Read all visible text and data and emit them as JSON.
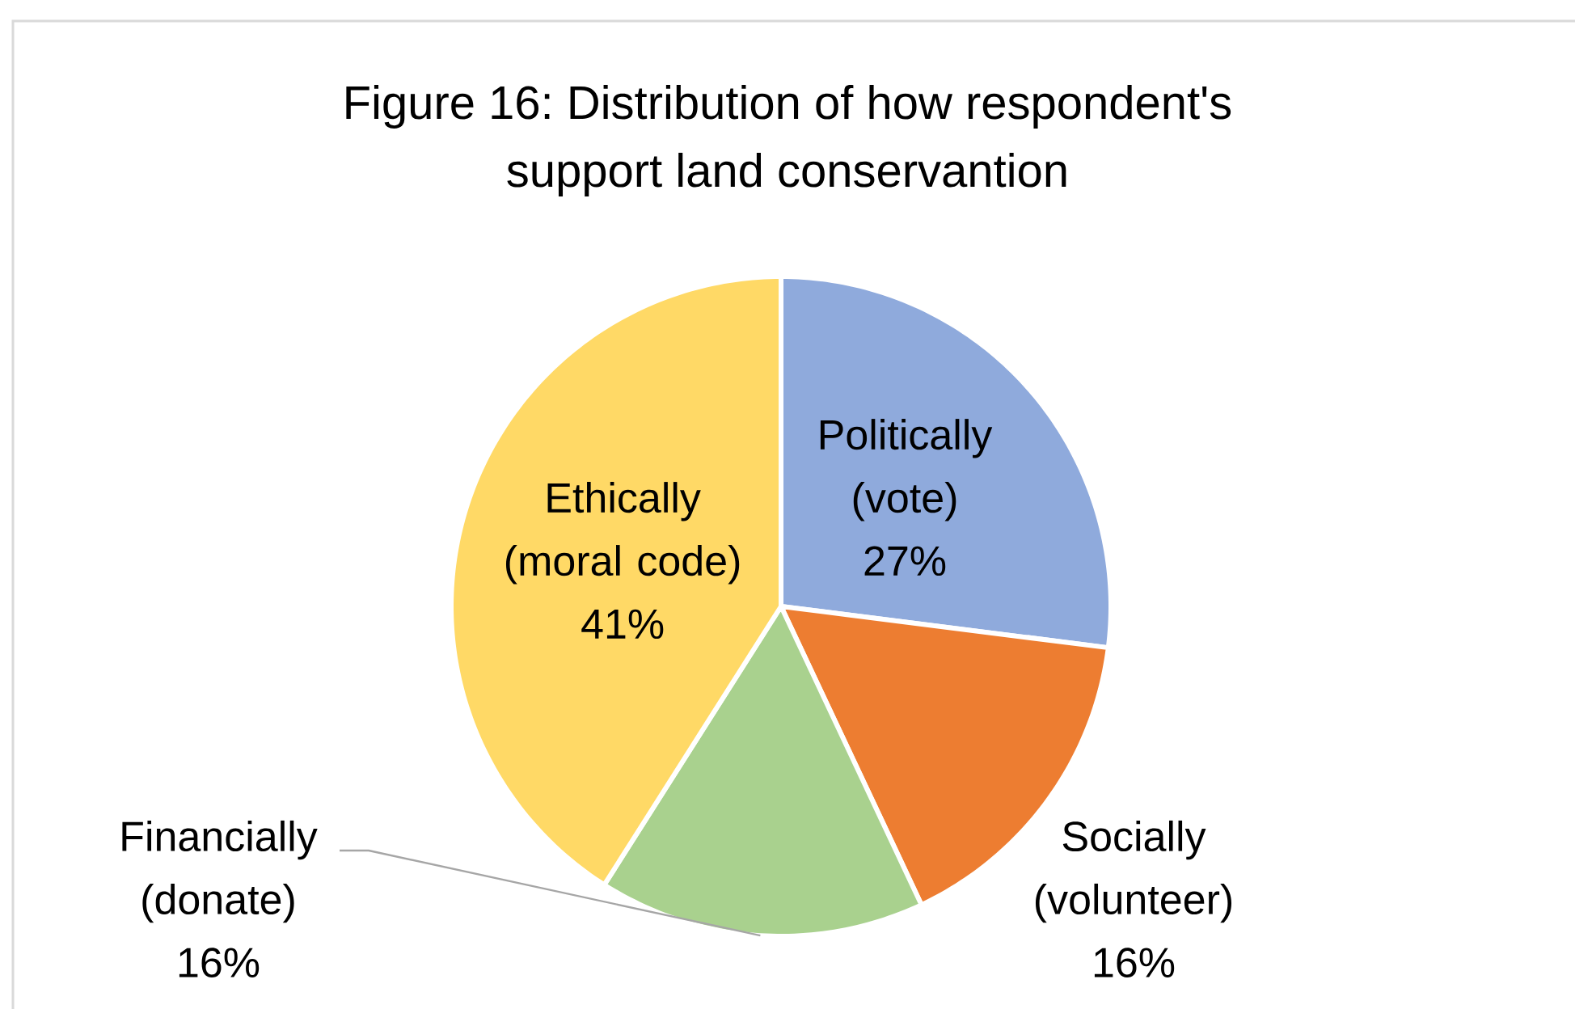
{
  "chart_data": {
    "type": "pie",
    "title": "Figure 16: Distribution of how respondent's support land conservantion",
    "categories": [
      "Politically (vote)",
      "Socially (volunteer)",
      "Financially (donate)",
      "Ethically (moral code)"
    ],
    "values": [
      27,
      16,
      16,
      41
    ],
    "colors": [
      "#8faadc",
      "#ed7d31",
      "#a9d18e",
      "#ffd966"
    ],
    "value_labels": [
      "27%",
      "16%",
      "16%",
      "41%"
    ]
  }
}
